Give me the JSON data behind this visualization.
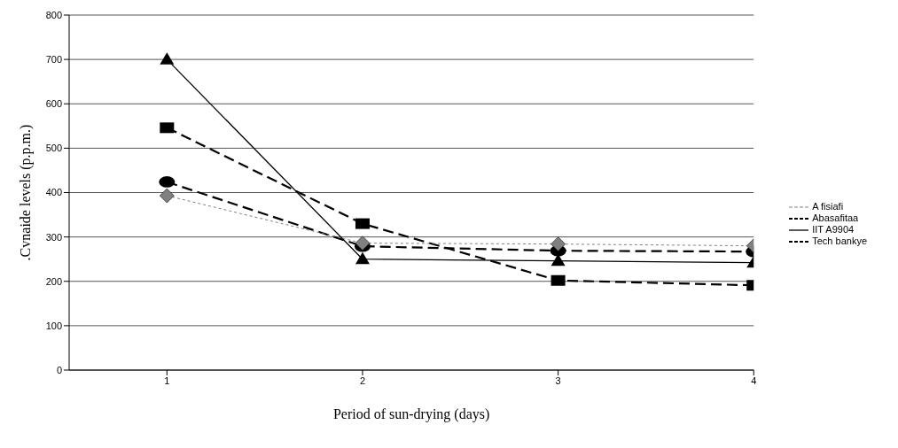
{
  "chart_data": {
    "type": "line",
    "xlabel": "Period of sun-drying (days)",
    "ylabel": ".Cvnaide levels (p.p.m.)",
    "x": [
      1,
      2,
      3,
      4
    ],
    "xlim": [
      0.5,
      4
    ],
    "xticks": [
      1,
      2,
      3,
      4
    ],
    "ylim": [
      0,
      800
    ],
    "yticks": [
      0,
      100,
      200,
      300,
      400,
      500,
      600,
      700,
      800
    ],
    "grid": "y",
    "legend": "right",
    "series": [
      {
        "name": "A fisiafi",
        "color": "#808080",
        "marker": "diamond",
        "line_style": "dotted",
        "values": [
          393,
          286,
          284,
          280
        ]
      },
      {
        "name": "Abasafitaa",
        "color": "#000000",
        "marker": "square",
        "line_style": "dashed",
        "values": [
          546,
          330,
          202,
          191
        ]
      },
      {
        "name": "IIT A9904",
        "color": "#000000",
        "marker": "triangle",
        "line_style": "solid",
        "values": [
          700,
          250,
          246,
          242
        ]
      },
      {
        "name": "Tech bankye",
        "color": "#000000",
        "marker": "circle",
        "line_style": "dashed",
        "values": [
          424,
          279,
          269,
          267
        ]
      }
    ]
  }
}
